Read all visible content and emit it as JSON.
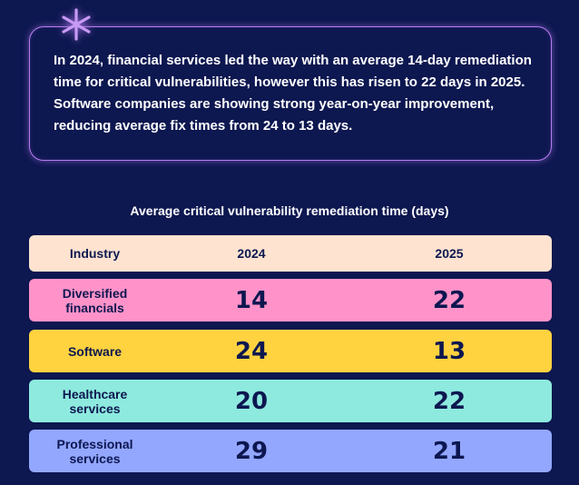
{
  "callout": {
    "text": "In 2024, financial services led the way with an average 14-day remediation time for critical vulnerabilities, however this has risen to 22 days in 2025. Software companies are showing strong year-on-year improvement, reducing average fix times from 24 to 13 days.",
    "icon": "asterisk-icon",
    "border_color": "#b77cf0"
  },
  "chart_data": {
    "type": "table",
    "title": "Average critical vulnerability remediation time (days)",
    "columns": [
      "Industry",
      "2024",
      "2025"
    ],
    "rows": [
      {
        "industry": "Diversified financials",
        "v2024": "14",
        "v2025": "22",
        "color": "#ff93c9"
      },
      {
        "industry": "Software",
        "v2024": "24",
        "v2025": "13",
        "color": "#ffd23f"
      },
      {
        "industry": "Healthcare services",
        "v2024": "20",
        "v2025": "22",
        "color": "#8eeade"
      },
      {
        "industry": "Professional services",
        "v2024": "29",
        "v2025": "21",
        "color": "#93a7ff"
      }
    ]
  },
  "colors": {
    "background": "#0d1750",
    "header_row": "#fde3d0",
    "text_dark": "#0d1750"
  }
}
